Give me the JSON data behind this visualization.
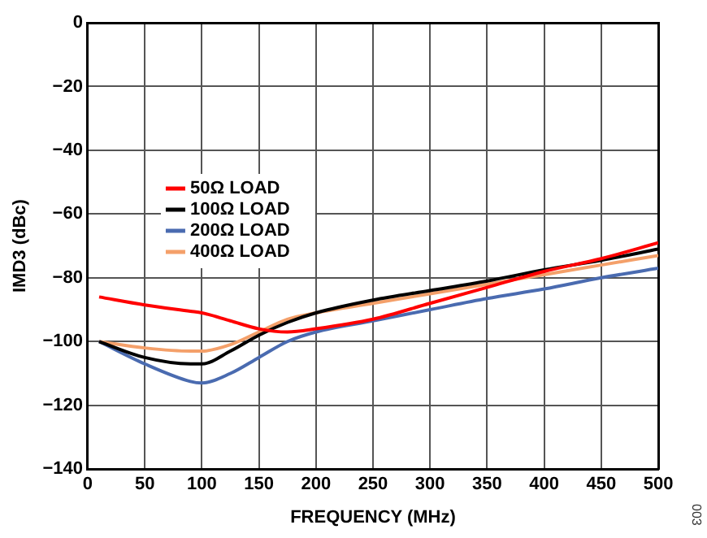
{
  "chart_data": {
    "type": "line",
    "xlabel": "FREQUENCY (MHz)",
    "ylabel": "IMD3 (dBc)",
    "xlim": [
      0,
      500
    ],
    "xticks": [
      0,
      50,
      100,
      150,
      200,
      250,
      300,
      350,
      400,
      450,
      500
    ],
    "ylim": [
      -140,
      0
    ],
    "yticks": [
      {
        "value": -140,
        "label": "−140"
      },
      {
        "value": -120,
        "label": "−120"
      },
      {
        "value": -100,
        "label": "−100"
      },
      {
        "value": -80,
        "label": "−80"
      },
      {
        "value": -60,
        "label": "−60"
      },
      {
        "value": -40,
        "label": "−40"
      },
      {
        "value": -20,
        "label": "−20"
      },
      0
    ],
    "grid": true,
    "legend": "top left",
    "marker": "none",
    "line_style": "solid",
    "annotations": [
      "003"
    ],
    "x": [
      10,
      50,
      90,
      100,
      125,
      150,
      175,
      200,
      250,
      300,
      350,
      400,
      450,
      500
    ],
    "series": [
      {
        "name": "50Ω LOAD",
        "color": "#ff0000",
        "values": [
          -86,
          -88.5,
          -90.5,
          -91,
          -93.5,
          -96,
          -97,
          -96,
          -93,
          -88,
          -83,
          -78,
          -74,
          -69
        ]
      },
      {
        "name": "100Ω LOAD",
        "color": "#000000",
        "values": [
          -100,
          -105,
          -107,
          -107,
          -103,
          -98,
          -94,
          -91,
          -87,
          -84,
          -81,
          -77.5,
          -74.5,
          -71
        ]
      },
      {
        "name": "200Ω LOAD",
        "color": "#4a6bb0",
        "values": [
          -100,
          -107,
          -112.5,
          -113,
          -110,
          -105,
          -100,
          -97,
          -93.5,
          -90,
          -86.5,
          -83.5,
          -80,
          -77
        ]
      },
      {
        "name": "400Ω LOAD",
        "color": "#f4a06a",
        "values": [
          -100,
          -102,
          -103,
          -103,
          -101,
          -97,
          -93,
          -91,
          -88,
          -85,
          -82,
          -79,
          -76,
          -73
        ]
      }
    ]
  }
}
